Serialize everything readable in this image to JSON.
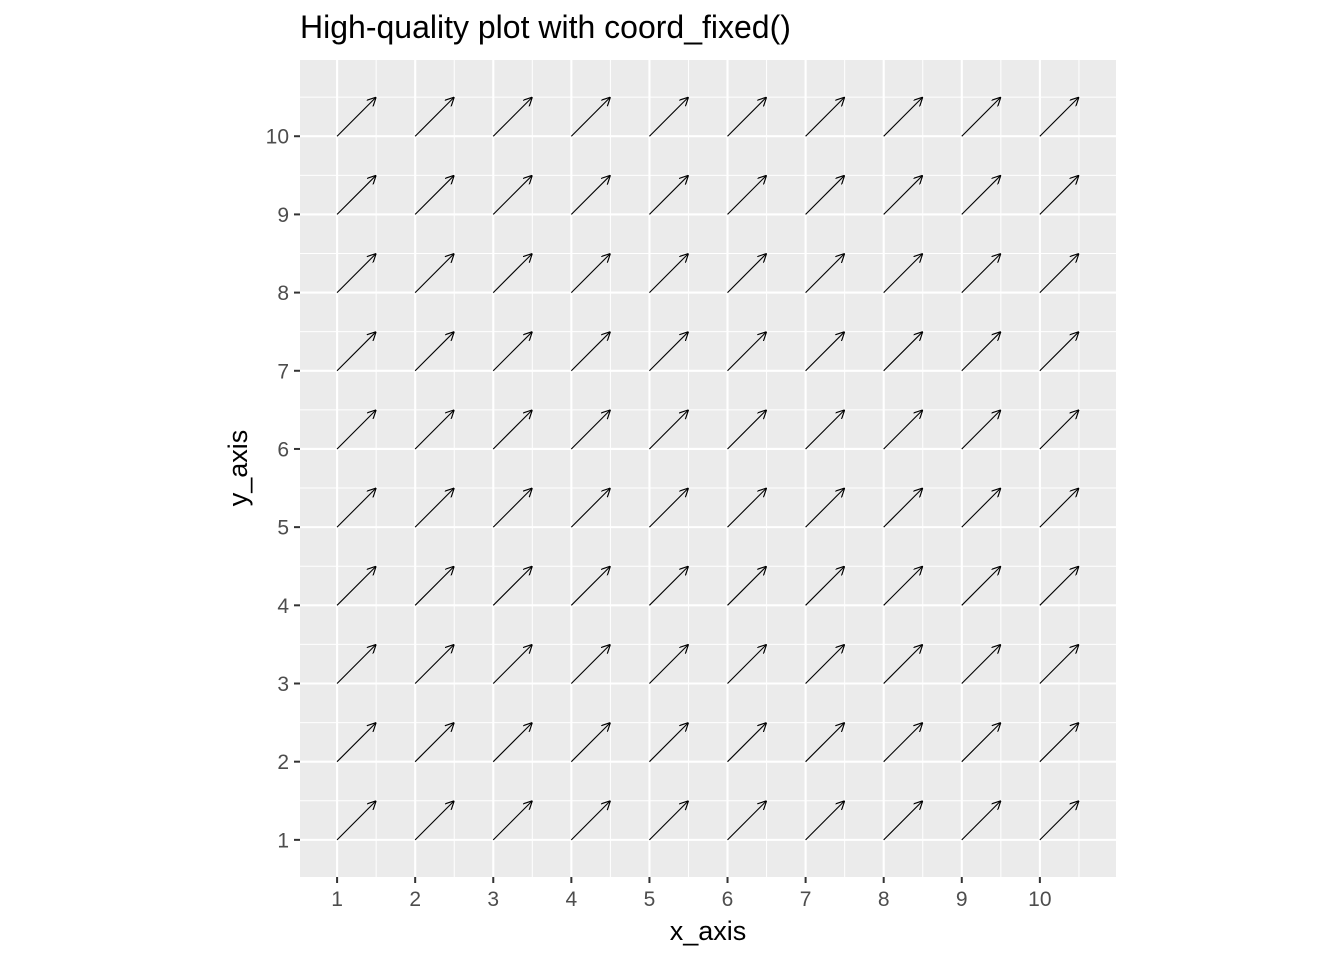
{
  "chart_data": {
    "type": "vector_field",
    "title": "High-quality plot with coord_fixed()",
    "xlabel": "x_axis",
    "ylabel": "y_axis",
    "xlim": [
      0.525,
      10.975
    ],
    "ylim": [
      0.525,
      10.975
    ],
    "x_ticks": [
      1,
      2,
      3,
      4,
      5,
      6,
      7,
      8,
      9,
      10
    ],
    "y_ticks": [
      1,
      2,
      3,
      4,
      5,
      6,
      7,
      8,
      9,
      10
    ],
    "x_tick_labels": [
      "1",
      "2",
      "3",
      "4",
      "5",
      "6",
      "7",
      "8",
      "9",
      "10"
    ],
    "y_tick_labels": [
      "1",
      "2",
      "3",
      "4",
      "5",
      "6",
      "7",
      "8",
      "9",
      "10"
    ],
    "grid": true,
    "panel_background": "#ebebeb",
    "arrow_color": "#000000",
    "x": [
      1,
      2,
      3,
      4,
      5,
      6,
      7,
      8,
      9,
      10
    ],
    "y": [
      1,
      2,
      3,
      4,
      5,
      6,
      7,
      8,
      9,
      10
    ],
    "dx": 0.5,
    "dy": 0.5
  }
}
